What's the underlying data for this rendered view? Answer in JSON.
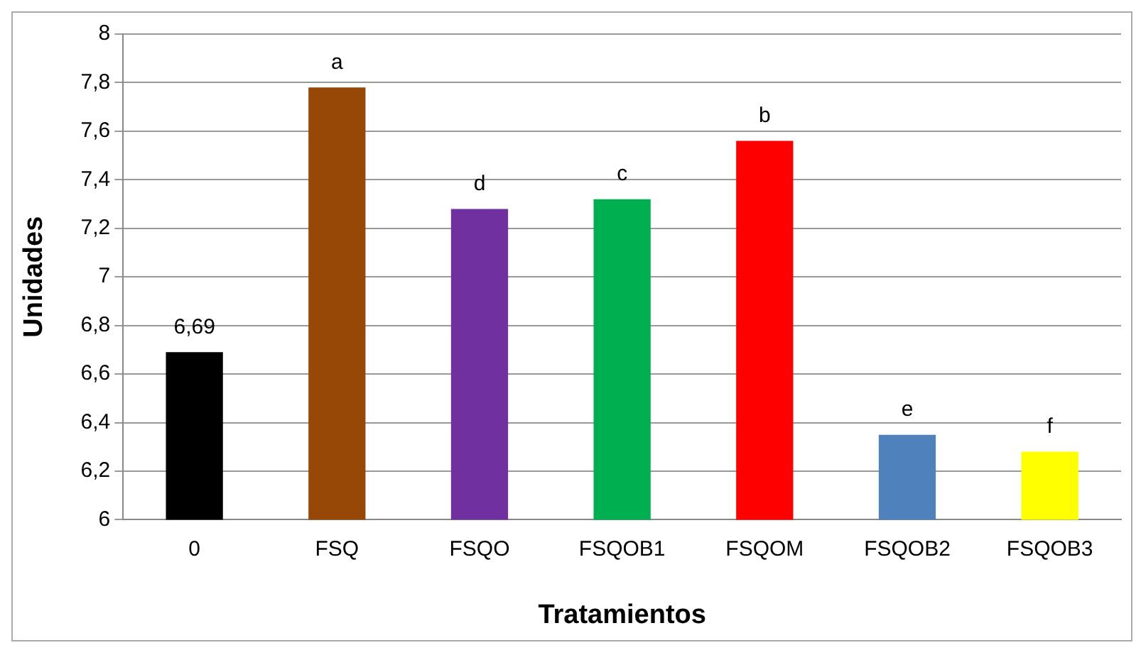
{
  "chart_data": {
    "type": "bar",
    "xlabel": "Tratamientos",
    "ylabel": "Unidades",
    "categories": [
      "0",
      "FSQ",
      "FSQO",
      "FSQOB1",
      "FSQOM",
      "FSQOB2",
      "FSQOB3"
    ],
    "values": [
      6.69,
      7.78,
      7.28,
      7.32,
      7.56,
      6.35,
      6.28
    ],
    "colors": [
      "#000000",
      "#974706",
      "#7030a0",
      "#00b050",
      "#ff0000",
      "#4f81bd",
      "#ffff00"
    ],
    "value_labels": [
      "6,69",
      null,
      null,
      null,
      null,
      null,
      null
    ],
    "annotations": [
      {
        "text": "a",
        "x": "FSQ",
        "y": 7.78
      },
      {
        "text": "d",
        "x": "FSQO",
        "y": 7.28
      },
      {
        "text": "c",
        "x": "FSQOB1",
        "y": 7.32
      },
      {
        "text": "b",
        "x": "FSQOM",
        "y": 7.56
      },
      {
        "text": "e",
        "x": "FSQOB2",
        "y": 6.35
      },
      {
        "text": "f",
        "x": "FSQOB3",
        "y": 6.28
      }
    ],
    "ylim": [
      6,
      8
    ],
    "yticks": [
      6,
      {
        "value": 6.2,
        "label": "6,2"
      },
      {
        "value": 6.4,
        "label": "6,4"
      },
      {
        "value": 6.6,
        "label": "6,6"
      },
      {
        "value": 6.8,
        "label": "6,8"
      },
      7,
      {
        "value": 7.2,
        "label": "7,2"
      },
      {
        "value": 7.4,
        "label": "7,4"
      },
      {
        "value": 7.6,
        "label": "7,6"
      },
      {
        "value": 7.8,
        "label": "7,8"
      },
      8
    ],
    "grid": "y",
    "legend": false
  }
}
